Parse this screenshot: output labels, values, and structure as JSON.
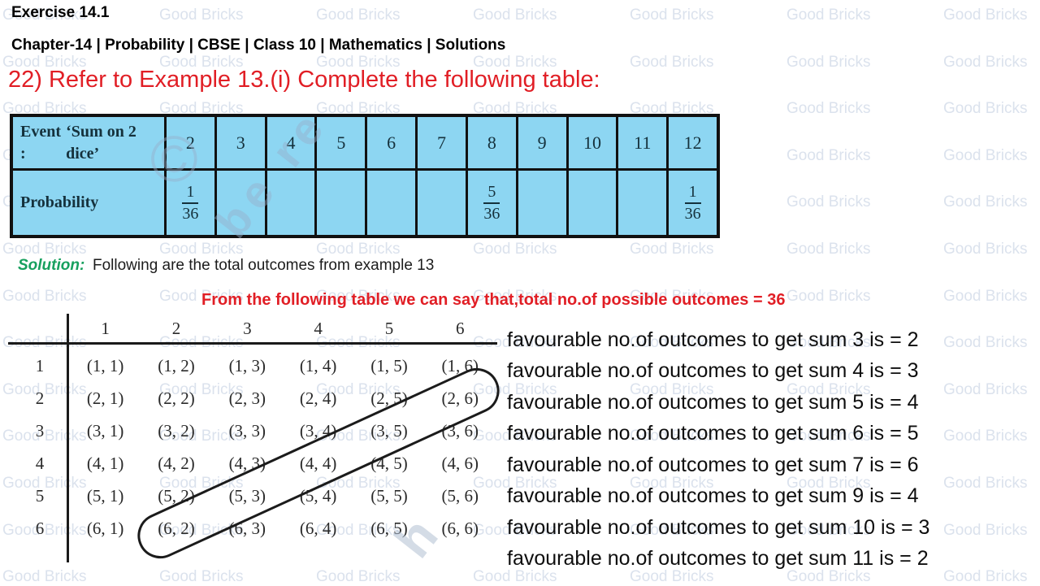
{
  "header": {
    "exercise": "Exercise 14.1",
    "chapter": "Chapter-14 | Probability | CBSE | Class 10 | Mathematics | Solutions"
  },
  "question": "22) Refer to Example 13.(i) Complete the following table:",
  "prob_table": {
    "event_label_line1": "Event :",
    "event_label_line2": "‘Sum on 2 dice’",
    "prob_label": "Probability",
    "sums": [
      "2",
      "3",
      "4",
      "5",
      "6",
      "7",
      "8",
      "9",
      "10",
      "11",
      "12"
    ],
    "probabilities": [
      {
        "num": "1",
        "den": "36"
      },
      null,
      null,
      null,
      null,
      null,
      {
        "num": "5",
        "den": "36"
      },
      null,
      null,
      null,
      {
        "num": "1",
        "den": "36"
      }
    ]
  },
  "solution": {
    "label": "Solution:",
    "text": "Following are the total outcomes from example 13"
  },
  "note": "From the following table we can say that,total no.of possible outcomes = 36",
  "outcome_grid": {
    "col_headers": [
      "1",
      "2",
      "3",
      "4",
      "5",
      "6"
    ],
    "row_headers": [
      "1",
      "2",
      "3",
      "4",
      "5",
      "6"
    ],
    "cells": [
      [
        "(1, 1)",
        "(1, 2)",
        "(1, 3)",
        "(1, 4)",
        "(1, 5)",
        "(1, 6)"
      ],
      [
        "(2, 1)",
        "(2, 2)",
        "(2, 3)",
        "(2, 4)",
        "(2, 5)",
        "(2, 6)"
      ],
      [
        "(3, 1)",
        "(3, 2)",
        "(3, 3)",
        "(3, 4)",
        "(3, 5)",
        "(3, 6)"
      ],
      [
        "(4, 1)",
        "(4, 2)",
        "(4, 3)",
        "(4, 4)",
        "(4, 5)",
        "(4, 6)"
      ],
      [
        "(5, 1)",
        "(5, 2)",
        "(5, 3)",
        "(5, 4)",
        "(5, 5)",
        "(5, 6)"
      ],
      [
        "(6, 1)",
        "(6, 2)",
        "(6, 3)",
        "(6, 4)",
        "(6, 5)",
        "(6, 6)"
      ]
    ],
    "circled_cells": [
      "(6, 2)",
      "(5, 3)",
      "(4, 4)",
      "(3, 5)",
      "(2, 6)"
    ]
  },
  "favourable_lines": [
    "favourable no.of outcomes to get sum 3 is = 2",
    "favourable no.of outcomes to get sum 4 is = 3",
    "favourable no.of outcomes to get sum 5 is = 4",
    "favourable no.of outcomes to get sum 6 is = 5",
    "favourable no.of outcomes to get sum 7 is = 6",
    "favourable no.of outcomes to get sum 9 is = 4",
    "favourable no.of outcomes to get sum 10 is = 3",
    "favourable no.of outcomes to get sum 11 is = 2"
  ],
  "watermark": {
    "tile_text": "Good Bricks",
    "diagonal_fragments": [
      "©",
      "be re",
      "h"
    ]
  },
  "colors": {
    "accent_red": "#e11e25",
    "accent_green": "#17a05e",
    "table_blue": "#8dd6f2",
    "watermark_tile": "#dbe2ed"
  }
}
